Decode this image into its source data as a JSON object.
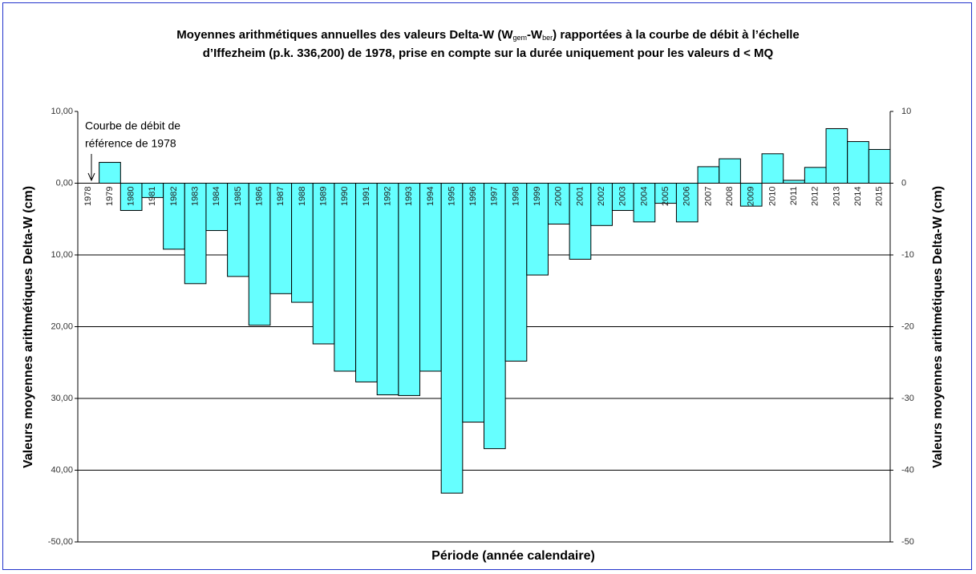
{
  "chart_data": {
    "type": "bar",
    "title_line1": [
      "Moyennes arithmétiques annuelles des valeurs Delta-W (W",
      "gem",
      "-W",
      "ber",
      ") rapportées à la courbe de débit à l’échelle"
    ],
    "title_line2": "d’Iffezheim (p.k. 336,200) de 1978, prise en compte sur la durée uniquement pour les valeurs d < MQ",
    "annotation": [
      "Courbe de débit de",
      "référence de 1978"
    ],
    "xlabel": "Période (année calendaire)",
    "ylabel": "Valeurs moyennes arithmétiques Delta-W (cm)",
    "y2label": "Valeurs moyennes arithmétiques Delta-W (cm)",
    "categories": [
      "1978",
      "1979",
      "1980",
      "1981",
      "1982",
      "1983",
      "1984",
      "1985",
      "1986",
      "1987",
      "1988",
      "1989",
      "1990",
      "1991",
      "1992",
      "1993",
      "1994",
      "1995",
      "1996",
      "1997",
      "1998",
      "1999",
      "2000",
      "2001",
      "2002",
      "2003",
      "2004",
      "2005",
      "2006",
      "2007",
      "2008",
      "2009",
      "2010",
      "2011",
      "2012",
      "2013",
      "2014",
      "2015"
    ],
    "values": [
      0,
      2.9,
      -3.8,
      -2.0,
      -9.2,
      -14.0,
      -6.6,
      -13.0,
      -19.8,
      -15.4,
      -16.6,
      -22.4,
      -26.2,
      -27.7,
      -29.5,
      -29.6,
      -26.2,
      -43.2,
      -33.3,
      -37.0,
      -24.8,
      -12.8,
      -5.7,
      -10.6,
      -5.9,
      -3.8,
      -5.4,
      -2.8,
      -5.4,
      2.3,
      3.4,
      -3.2,
      4.1,
      0.4,
      2.2,
      7.6,
      5.8,
      4.7
    ],
    "color": "#66ffff",
    "ylim": [
      -50,
      10
    ],
    "yticks": [
      {
        "value": 10,
        "label": "10,00"
      },
      {
        "value": 0,
        "label": "0,00"
      },
      {
        "value": -10,
        "label": "10,00"
      },
      {
        "value": -20,
        "label": "20,00"
      },
      {
        "value": -30,
        "label": "30,00"
      },
      {
        "value": -40,
        "label": "40,00"
      },
      {
        "value": -50,
        "label": "-50,00"
      }
    ],
    "y2lim": [
      -50,
      10
    ],
    "y2ticks": [
      10,
      0,
      -10,
      -20,
      -30,
      -40,
      -50
    ],
    "grid": true
  }
}
